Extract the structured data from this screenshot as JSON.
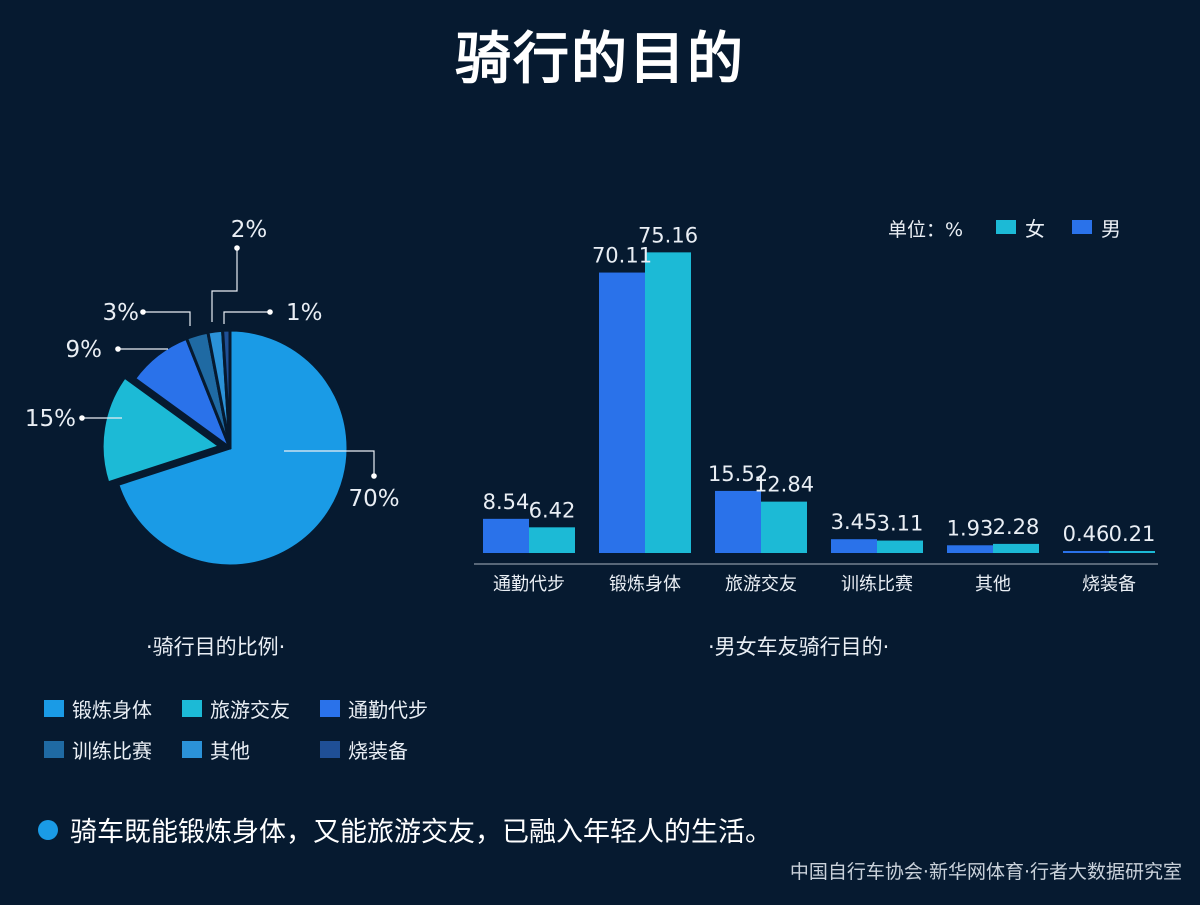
{
  "title": "骑行的目的",
  "pie_caption": "·骑行目的比例·",
  "bar_caption": "·男女车友骑行目的·",
  "note": "骑车既能锻炼身体，又能旅游交友，已融入年轻人的生活。",
  "source": "中国自行车协会·新华网体育·行者大数据研究室",
  "legend": [
    {
      "label": "锻炼身体",
      "color": "#1a9be6"
    },
    {
      "label": "旅游交友",
      "color": "#1cbad6"
    },
    {
      "label": "通勤代步",
      "color": "#2a72ea"
    },
    {
      "label": "训练比赛",
      "color": "#1f6aa3"
    },
    {
      "label": "其他",
      "color": "#2b92d8"
    },
    {
      "label": "烧装备",
      "color": "#1f4f96"
    }
  ],
  "chart_data": [
    {
      "type": "pie",
      "title": "·骑行目的比例·",
      "categories": [
        "锻炼身体",
        "旅游交友",
        "通勤代步",
        "训练比赛",
        "其他",
        "烧装备"
      ],
      "values": [
        70,
        15,
        9,
        3,
        2,
        1
      ],
      "labels": [
        "70%",
        "15%",
        "9%",
        "3%",
        "2%",
        "1%"
      ],
      "colors": [
        "#1a9be6",
        "#1cbad6",
        "#2a72ea",
        "#1f6aa3",
        "#2b92d8",
        "#1f4f96"
      ]
    },
    {
      "type": "bar",
      "title": "·男女车友骑行目的·",
      "unit_label": "单位：%",
      "categories": [
        "通勤代步",
        "锻炼身体",
        "旅游交友",
        "训练比赛",
        "其他",
        "烧装备"
      ],
      "series": [
        {
          "name": "男",
          "color": "#2a72ea",
          "values": [
            8.54,
            70.11,
            15.52,
            3.45,
            1.93,
            0.46
          ]
        },
        {
          "name": "女",
          "color": "#1cbad6",
          "values": [
            6.42,
            75.16,
            12.84,
            3.11,
            2.28,
            0.21
          ]
        }
      ],
      "legend_order": [
        "女",
        "男"
      ],
      "ylim": [
        0,
        80
      ],
      "grid": false
    }
  ]
}
